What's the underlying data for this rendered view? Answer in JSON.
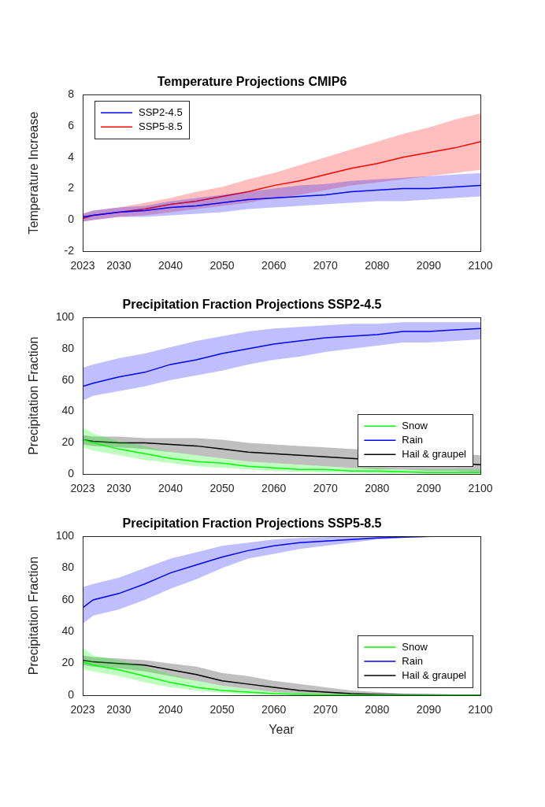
{
  "chart_data": [
    {
      "type": "line",
      "title": "Temperature Projections CMIP6",
      "ylabel": "Temperature Increase",
      "x": [
        2023,
        2025,
        2030,
        2035,
        2040,
        2045,
        2050,
        2055,
        2060,
        2065,
        2070,
        2075,
        2080,
        2085,
        2090,
        2095,
        2100
      ],
      "xlim": [
        2023,
        2100
      ],
      "xticks": [
        2023,
        2030,
        2040,
        2050,
        2060,
        2070,
        2080,
        2090,
        2100
      ],
      "ylim": [
        -2,
        8
      ],
      "yticks": [
        -2,
        0,
        2,
        4,
        6,
        8
      ],
      "grid": false,
      "legend": "upper left",
      "series": [
        {
          "name": "SSP2-4.5",
          "color": "#0000ff",
          "values": [
            0.2,
            0.3,
            0.5,
            0.6,
            0.8,
            0.9,
            1.1,
            1.3,
            1.4,
            1.5,
            1.6,
            1.8,
            1.9,
            2.0,
            2.0,
            2.1,
            2.2
          ],
          "lower": [
            -0.1,
            0.0,
            0.2,
            0.2,
            0.3,
            0.4,
            0.5,
            0.7,
            0.8,
            0.9,
            1.0,
            1.1,
            1.2,
            1.2,
            1.3,
            1.4,
            1.5
          ],
          "upper": [
            0.4,
            0.6,
            0.8,
            0.9,
            1.2,
            1.4,
            1.6,
            1.8,
            2.0,
            2.2,
            2.3,
            2.5,
            2.6,
            2.7,
            2.8,
            2.9,
            3.0
          ]
        },
        {
          "name": "SSP5-8.5",
          "color": "#ff0000",
          "values": [
            0.1,
            0.3,
            0.5,
            0.7,
            1.0,
            1.2,
            1.5,
            1.8,
            2.2,
            2.5,
            2.9,
            3.3,
            3.6,
            4.0,
            4.3,
            4.6,
            5.0
          ],
          "lower": [
            -0.1,
            0.0,
            0.2,
            0.3,
            0.5,
            0.7,
            0.9,
            1.1,
            1.4,
            1.6,
            1.9,
            2.2,
            2.4,
            2.6,
            2.8,
            3.0,
            3.2
          ],
          "upper": [
            0.4,
            0.6,
            0.8,
            1.1,
            1.4,
            1.8,
            2.1,
            2.6,
            3.0,
            3.5,
            4.0,
            4.5,
            5.0,
            5.5,
            5.9,
            6.4,
            6.8
          ]
        }
      ]
    },
    {
      "type": "line",
      "title": "Precipitation Fraction Projections SSP2-4.5",
      "ylabel": "Precipitation Fraction",
      "x": [
        2023,
        2025,
        2030,
        2035,
        2040,
        2045,
        2050,
        2055,
        2060,
        2065,
        2070,
        2075,
        2080,
        2085,
        2090,
        2095,
        2100
      ],
      "xlim": [
        2023,
        2100
      ],
      "xticks": [
        2023,
        2030,
        2040,
        2050,
        2060,
        2070,
        2080,
        2090,
        2100
      ],
      "ylim": [
        0,
        100
      ],
      "yticks": [
        0,
        20,
        40,
        60,
        80,
        100
      ],
      "grid": false,
      "legend": "lower right",
      "series": [
        {
          "name": "Snow",
          "color": "#00ff00",
          "values": [
            22,
            20,
            16,
            13,
            10,
            8,
            7,
            5,
            4,
            3,
            3,
            2,
            2,
            1.5,
            1,
            1,
            1
          ],
          "lower": [
            17,
            15,
            12,
            9,
            7,
            5,
            4,
            3,
            2,
            1.5,
            1,
            1,
            0.5,
            0.5,
            0.3,
            0.3,
            0.3
          ],
          "upper": [
            30,
            26,
            21,
            18,
            14,
            12,
            10,
            8,
            7,
            6,
            5,
            4,
            4,
            3,
            3,
            3,
            3
          ]
        },
        {
          "name": "Rain",
          "color": "#0000ff",
          "values": [
            56,
            58,
            62,
            65,
            70,
            73,
            77,
            80,
            83,
            85,
            87,
            88,
            89,
            91,
            91,
            92,
            93
          ],
          "lower": [
            47,
            50,
            53,
            56,
            60,
            63,
            66,
            70,
            73,
            75,
            78,
            80,
            82,
            84,
            84,
            85,
            86
          ],
          "upper": [
            68,
            70,
            74,
            77,
            81,
            85,
            88,
            91,
            93,
            94,
            95,
            96,
            96,
            97,
            97,
            97,
            97
          ]
        },
        {
          "name": "Hail & graupel",
          "color": "#000000",
          "values": [
            22,
            21,
            20,
            20,
            19,
            18,
            16,
            14,
            13,
            12,
            11,
            10,
            9,
            8,
            7,
            7,
            6
          ],
          "lower": [
            19,
            18,
            17,
            16,
            14,
            12,
            10,
            8,
            7,
            6,
            5,
            4,
            3,
            3,
            2,
            2,
            1
          ],
          "upper": [
            25,
            24,
            24,
            23,
            23,
            23,
            22,
            20,
            19,
            18,
            17,
            16,
            15,
            14,
            13,
            13,
            12
          ]
        }
      ]
    },
    {
      "type": "line",
      "title": "Precipitation Fraction Projections SSP5-8.5",
      "xlabel": "Year",
      "ylabel": "Precipitation Fraction",
      "x": [
        2023,
        2025,
        2030,
        2035,
        2040,
        2045,
        2050,
        2055,
        2060,
        2065,
        2070,
        2075,
        2080,
        2085,
        2090,
        2095,
        2100
      ],
      "xlim": [
        2023,
        2100
      ],
      "xticks": [
        2023,
        2030,
        2040,
        2050,
        2060,
        2070,
        2080,
        2090,
        2100
      ],
      "ylim": [
        0,
        100
      ],
      "yticks": [
        0,
        20,
        40,
        60,
        80,
        100
      ],
      "grid": false,
      "legend": "lower right",
      "series": [
        {
          "name": "Snow",
          "color": "#00ff00",
          "values": [
            21,
            19,
            16,
            12,
            8,
            5,
            3,
            2,
            1,
            0.5,
            0.3,
            0.2,
            0.1,
            0,
            0,
            0,
            0
          ],
          "lower": [
            16,
            15,
            12,
            8,
            5,
            3,
            1.5,
            0.5,
            0.3,
            0.1,
            0,
            0,
            0,
            0,
            0,
            0,
            0
          ],
          "upper": [
            30,
            25,
            22,
            18,
            13,
            9,
            6,
            4,
            2,
            1.5,
            1,
            0.5,
            0.3,
            0.1,
            0,
            0,
            0
          ]
        },
        {
          "name": "Rain",
          "color": "#0000ff",
          "values": [
            55,
            60,
            64,
            70,
            77,
            82,
            87,
            91,
            94,
            96,
            97,
            98,
            99,
            99.5,
            100,
            100,
            100
          ],
          "lower": [
            45,
            50,
            54,
            60,
            67,
            73,
            80,
            86,
            89,
            92,
            94,
            96,
            98,
            99,
            99.5,
            100,
            100
          ],
          "upper": [
            68,
            70,
            74,
            80,
            86,
            90,
            94,
            96,
            98,
            99,
            99.5,
            100,
            100,
            100,
            100,
            100,
            100
          ]
        },
        {
          "name": "Hail & graupel",
          "color": "#000000",
          "values": [
            22,
            21,
            20,
            19,
            16,
            13,
            9,
            7,
            5,
            3,
            2,
            1,
            0.5,
            0.3,
            0.2,
            0.1,
            0.1
          ],
          "lower": [
            19,
            18,
            17,
            15,
            12,
            9,
            6,
            4,
            2,
            1,
            0.5,
            0.2,
            0.1,
            0,
            0,
            0,
            0
          ],
          "upper": [
            25,
            24,
            23,
            22,
            20,
            18,
            14,
            12,
            9,
            7,
            5,
            3,
            2,
            1,
            0.5,
            0.3,
            0.2
          ]
        }
      ]
    }
  ]
}
